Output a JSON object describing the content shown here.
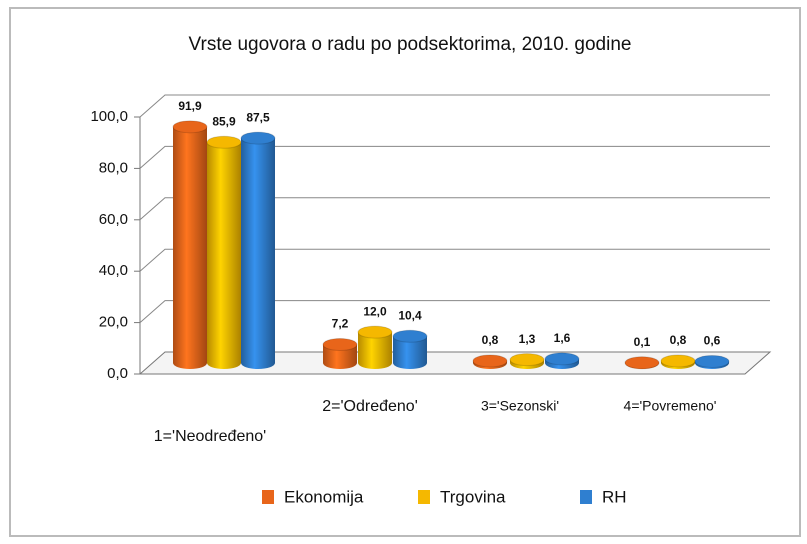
{
  "chart_data": {
    "type": "bar3d",
    "title": "Vrste ugovora o radu po podsektorima, 2010. godine",
    "categories": [
      "1='Neodređeno'",
      "2='Određeno'",
      "3='Sezonski'",
      "4='Povremeno'"
    ],
    "series": [
      {
        "name": "Ekonomija",
        "color": "#e8651a",
        "values": [
          91.9,
          7.2,
          0.8,
          0.1
        ],
        "value_labels": [
          "91,9",
          "7,2",
          "0,8",
          "0,1"
        ]
      },
      {
        "name": "Trgovina",
        "color": "#f5b800",
        "values": [
          85.9,
          12.0,
          1.3,
          0.8
        ],
        "value_labels": [
          "85,9",
          "12,0",
          "1,3",
          "0,8"
        ]
      },
      {
        "name": "RH",
        "color": "#2f7fd0",
        "values": [
          87.5,
          10.4,
          1.6,
          0.6
        ],
        "value_labels": [
          "87,5",
          "10,4",
          "1,6",
          "0,6"
        ]
      }
    ],
    "ylim": [
      0,
      100
    ],
    "yticks": [
      {
        "value": 0,
        "label": "0,0"
      },
      {
        "value": 20,
        "label": "20,0"
      },
      {
        "value": 40,
        "label": "40,0"
      },
      {
        "value": 60,
        "label": "60,0"
      },
      {
        "value": 80,
        "label": "80,0"
      },
      {
        "value": 100,
        "label": "100,0"
      }
    ],
    "grid": true,
    "legend": "bottom"
  }
}
